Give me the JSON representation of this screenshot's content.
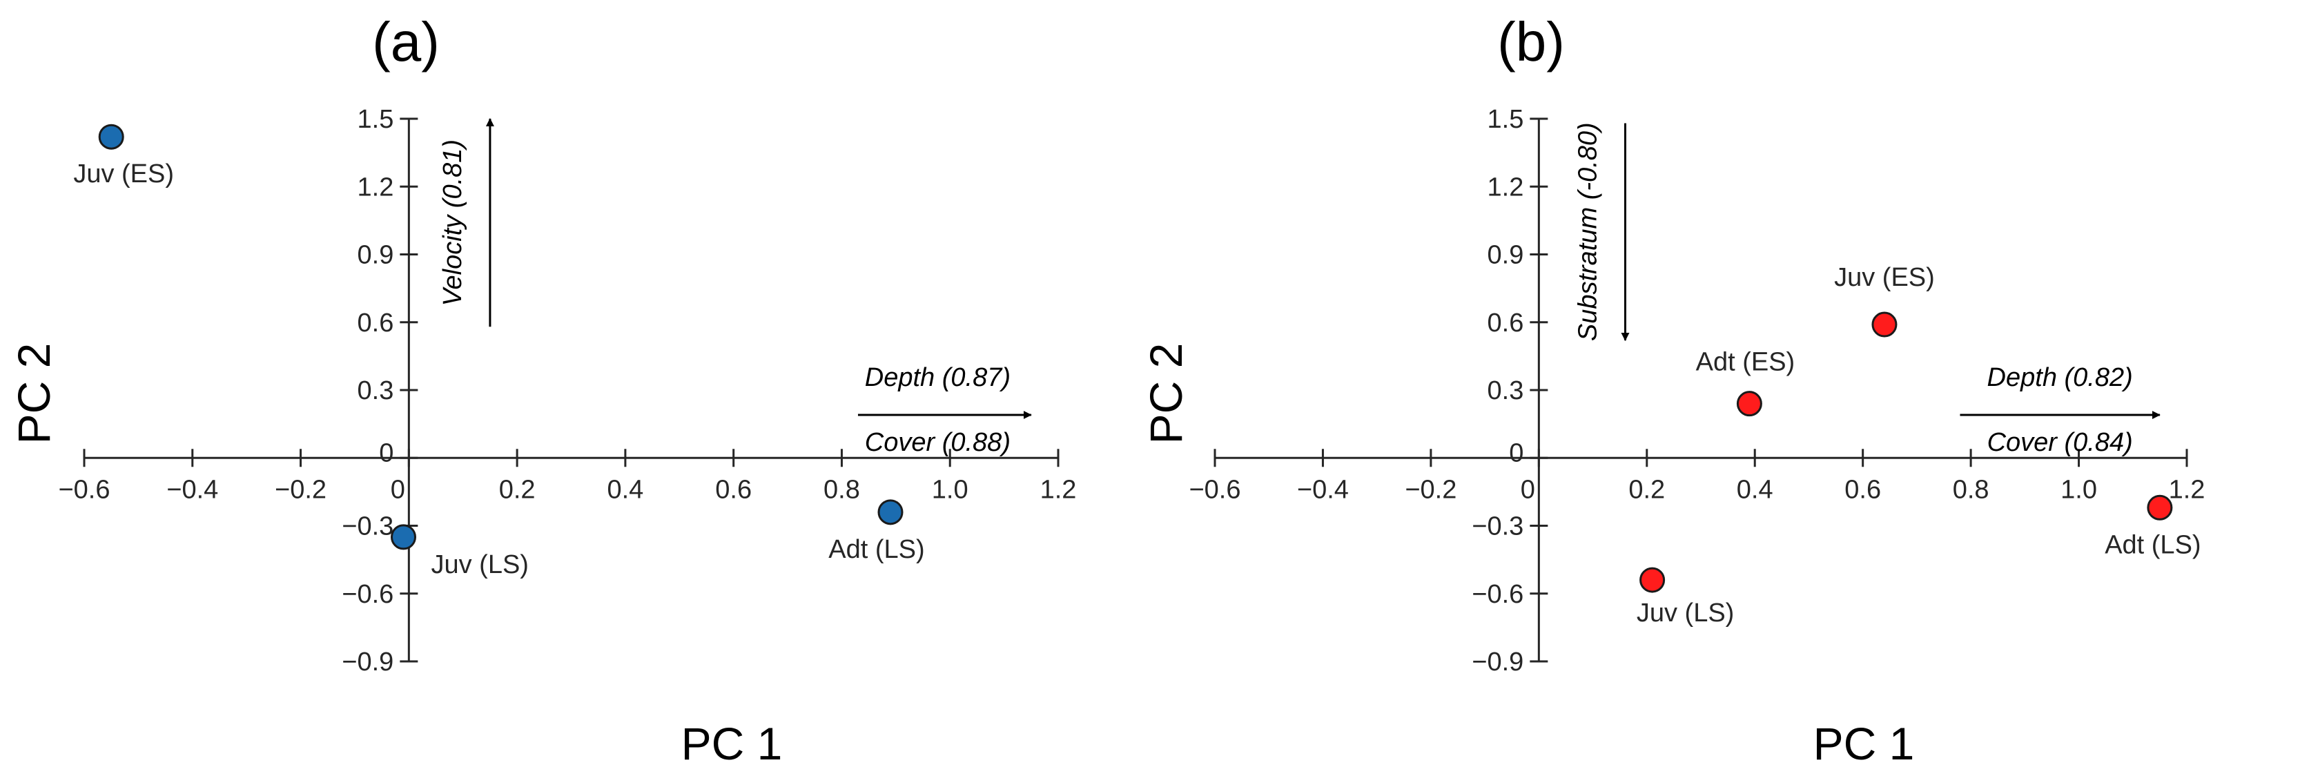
{
  "colors": {
    "panel_a_marker": "#1b6cb0",
    "panel_b_marker": "#ff1c1c",
    "marker_edge": "#1a1a1a",
    "axis": "#262626",
    "arrow": "#000000"
  },
  "chart_data": [
    {
      "type": "scatter",
      "panel": "(a)",
      "xlabel": "PC 1",
      "ylabel": "PC 2",
      "xlim": [
        -0.6,
        1.2
      ],
      "ylim": [
        -0.9,
        1.5
      ],
      "x_ticks": [
        "−0.6",
        "−0.4",
        "−0.2",
        "0",
        "0.2",
        "0.4",
        "0.6",
        "0.8",
        "1.0",
        "1.2"
      ],
      "y_ticks": [
        "1.5",
        "1.2",
        "0.9",
        "0.6",
        "0.3",
        "0",
        "−0.3",
        "−0.6",
        "−0.9"
      ],
      "grid": false,
      "marker_color": "#1b6cb0",
      "points": [
        {
          "label": "Juv (ES)",
          "x": -0.55,
          "y": 1.42
        },
        {
          "label": "Juv (LS)",
          "x": -0.01,
          "y": -0.35
        },
        {
          "label": "Adt (LS)",
          "x": 0.89,
          "y": -0.24
        }
      ],
      "vectors": [
        {
          "labels": [
            "Velocity (0.81)"
          ],
          "direction": "up",
          "from": [
            0.15,
            0.58
          ],
          "to": [
            0.15,
            1.5
          ]
        },
        {
          "labels": [
            "Depth (0.87)",
            "Cover (0.88)"
          ],
          "direction": "right",
          "from": [
            0.83,
            0.19
          ],
          "to": [
            1.15,
            0.19
          ]
        }
      ]
    },
    {
      "type": "scatter",
      "panel": "(b)",
      "xlabel": "PC 1",
      "ylabel": "PC 2",
      "xlim": [
        -0.6,
        1.2
      ],
      "ylim": [
        -0.9,
        1.5
      ],
      "x_ticks": [
        "−0.6",
        "−0.4",
        "−0.2",
        "0",
        "0.2",
        "0.4",
        "0.6",
        "0.8",
        "1.0",
        "1.2"
      ],
      "y_ticks": [
        "1.5",
        "1.2",
        "0.9",
        "0.6",
        "0.3",
        "0",
        "−0.3",
        "−0.6",
        "−0.9"
      ],
      "grid": false,
      "marker_color": "#ff1c1c",
      "points": [
        {
          "label": "Juv (ES)",
          "x": 0.64,
          "y": 0.59
        },
        {
          "label": "Adt (ES)",
          "x": 0.39,
          "y": 0.24
        },
        {
          "label": "Adt (LS)",
          "x": 1.15,
          "y": -0.22
        },
        {
          "label": "Juv (LS)",
          "x": 0.21,
          "y": -0.54
        }
      ],
      "vectors": [
        {
          "labels": [
            "Substratum  (-0.80)"
          ],
          "direction": "down",
          "from": [
            0.16,
            1.48
          ],
          "to": [
            0.16,
            0.52
          ]
        },
        {
          "labels": [
            "Depth (0.82)",
            "Cover (0.84)"
          ],
          "direction": "right",
          "from": [
            0.78,
            0.19
          ],
          "to": [
            1.15,
            0.19
          ]
        }
      ]
    }
  ]
}
